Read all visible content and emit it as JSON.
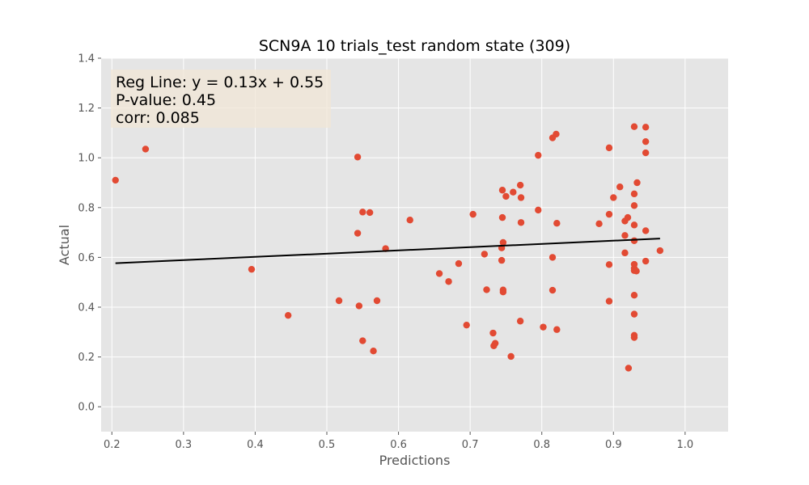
{
  "chart_data": {
    "type": "scatter",
    "title": "SCN9A 10 trials_test random state (309)",
    "xlabel": "Predictions",
    "ylabel": "Actual",
    "xlim": [
      0.185,
      1.06
    ],
    "ylim": [
      -0.1,
      1.4
    ],
    "xticks": [
      "0.2",
      "0.3",
      "0.4",
      "0.5",
      "0.6",
      "0.7",
      "0.8",
      "0.9",
      "1.0"
    ],
    "yticks": [
      "0.0",
      "0.2",
      "0.4",
      "0.6",
      "0.8",
      "1.0",
      "1.2",
      "1.4"
    ],
    "grid": true,
    "colors": {
      "background": "#e5e5e5",
      "grid": "#ffffff",
      "points": "#e24a33",
      "reg_line": "#000000",
      "annotation_box": "#f0e6d6"
    },
    "annotation": {
      "lines": [
        "Reg Line: y = 0.13x + 0.55",
        "P-value: 0.45",
        "corr: 0.085"
      ],
      "placement": "top-left"
    },
    "regression_line": {
      "slope": 0.13,
      "intercept": 0.55,
      "x_range": [
        0.205,
        0.965
      ]
    },
    "points": [
      {
        "x": 0.205,
        "y": 0.91
      },
      {
        "x": 0.247,
        "y": 1.035
      },
      {
        "x": 0.395,
        "y": 0.552
      },
      {
        "x": 0.446,
        "y": 0.367
      },
      {
        "x": 0.517,
        "y": 0.426
      },
      {
        "x": 0.543,
        "y": 1.003
      },
      {
        "x": 0.543,
        "y": 0.697
      },
      {
        "x": 0.545,
        "y": 0.405
      },
      {
        "x": 0.55,
        "y": 0.782
      },
      {
        "x": 0.55,
        "y": 0.265
      },
      {
        "x": 0.56,
        "y": 0.78
      },
      {
        "x": 0.565,
        "y": 0.224
      },
      {
        "x": 0.57,
        "y": 0.426
      },
      {
        "x": 0.582,
        "y": 0.635
      },
      {
        "x": 0.616,
        "y": 0.75
      },
      {
        "x": 0.657,
        "y": 0.535
      },
      {
        "x": 0.67,
        "y": 0.503
      },
      {
        "x": 0.684,
        "y": 0.575
      },
      {
        "x": 0.695,
        "y": 0.328
      },
      {
        "x": 0.704,
        "y": 0.773
      },
      {
        "x": 0.72,
        "y": 0.613
      },
      {
        "x": 0.723,
        "y": 0.47
      },
      {
        "x": 0.732,
        "y": 0.296
      },
      {
        "x": 0.733,
        "y": 0.245
      },
      {
        "x": 0.735,
        "y": 0.255
      },
      {
        "x": 0.744,
        "y": 0.638
      },
      {
        "x": 0.744,
        "y": 0.588
      },
      {
        "x": 0.745,
        "y": 0.87
      },
      {
        "x": 0.745,
        "y": 0.76
      },
      {
        "x": 0.746,
        "y": 0.66
      },
      {
        "x": 0.746,
        "y": 0.469
      },
      {
        "x": 0.746,
        "y": 0.461
      },
      {
        "x": 0.75,
        "y": 0.845
      },
      {
        "x": 0.757,
        "y": 0.202
      },
      {
        "x": 0.76,
        "y": 0.862
      },
      {
        "x": 0.77,
        "y": 0.89
      },
      {
        "x": 0.771,
        "y": 0.84
      },
      {
        "x": 0.771,
        "y": 0.74
      },
      {
        "x": 0.77,
        "y": 0.344
      },
      {
        "x": 0.795,
        "y": 1.01
      },
      {
        "x": 0.795,
        "y": 0.79
      },
      {
        "x": 0.802,
        "y": 0.32
      },
      {
        "x": 0.815,
        "y": 1.08
      },
      {
        "x": 0.815,
        "y": 0.6
      },
      {
        "x": 0.815,
        "y": 0.468
      },
      {
        "x": 0.82,
        "y": 1.095
      },
      {
        "x": 0.821,
        "y": 0.737
      },
      {
        "x": 0.821,
        "y": 0.31
      },
      {
        "x": 0.88,
        "y": 0.735
      },
      {
        "x": 0.894,
        "y": 1.04
      },
      {
        "x": 0.894,
        "y": 0.773
      },
      {
        "x": 0.894,
        "y": 0.571
      },
      {
        "x": 0.894,
        "y": 0.424
      },
      {
        "x": 0.9,
        "y": 0.84
      },
      {
        "x": 0.909,
        "y": 0.883
      },
      {
        "x": 0.916,
        "y": 0.746
      },
      {
        "x": 0.916,
        "y": 0.688
      },
      {
        "x": 0.916,
        "y": 0.618
      },
      {
        "x": 0.92,
        "y": 0.76
      },
      {
        "x": 0.921,
        "y": 0.155
      },
      {
        "x": 0.929,
        "y": 1.125
      },
      {
        "x": 0.929,
        "y": 0.855
      },
      {
        "x": 0.929,
        "y": 0.808
      },
      {
        "x": 0.929,
        "y": 0.73
      },
      {
        "x": 0.929,
        "y": 0.667
      },
      {
        "x": 0.929,
        "y": 0.572
      },
      {
        "x": 0.929,
        "y": 0.556
      },
      {
        "x": 0.929,
        "y": 0.547
      },
      {
        "x": 0.929,
        "y": 0.448
      },
      {
        "x": 0.929,
        "y": 0.372
      },
      {
        "x": 0.929,
        "y": 0.287
      },
      {
        "x": 0.929,
        "y": 0.278
      },
      {
        "x": 0.932,
        "y": 0.545
      },
      {
        "x": 0.933,
        "y": 0.9
      },
      {
        "x": 0.945,
        "y": 1.123
      },
      {
        "x": 0.945,
        "y": 1.065
      },
      {
        "x": 0.945,
        "y": 1.02
      },
      {
        "x": 0.945,
        "y": 0.707
      },
      {
        "x": 0.945,
        "y": 0.585
      },
      {
        "x": 0.965,
        "y": 0.627
      }
    ]
  }
}
